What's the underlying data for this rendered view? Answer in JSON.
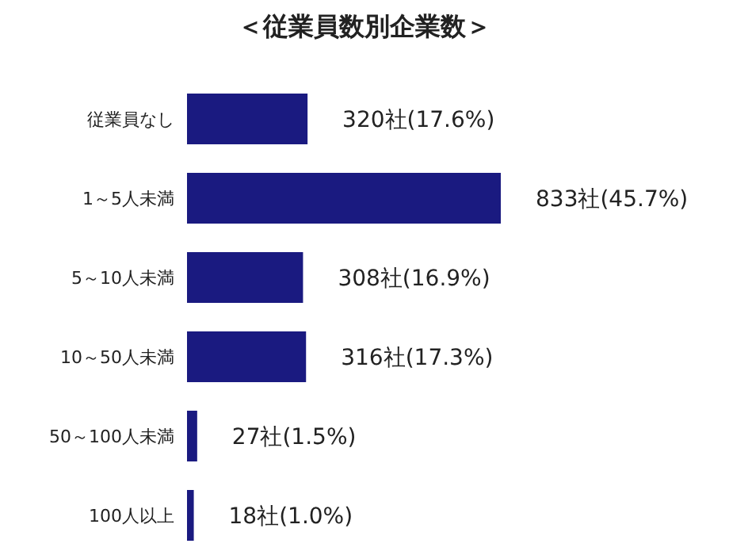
{
  "chart_data": {
    "type": "bar",
    "orientation": "horizontal",
    "title": "＜従業員数別企業数＞",
    "categories": [
      "従業員なし",
      "1～5人未満",
      "5～10人未満",
      "10～50人未満",
      "50～100人未満",
      "100人以上"
    ],
    "values": [
      320,
      833,
      308,
      316,
      27,
      18
    ],
    "value_labels": [
      "320社(17.6%)",
      "833社(45.7%)",
      "308社(16.9%)",
      "316社(17.3%)",
      "27社(1.5%)",
      "18社(1.0%)"
    ],
    "color": "#1a1a80"
  }
}
